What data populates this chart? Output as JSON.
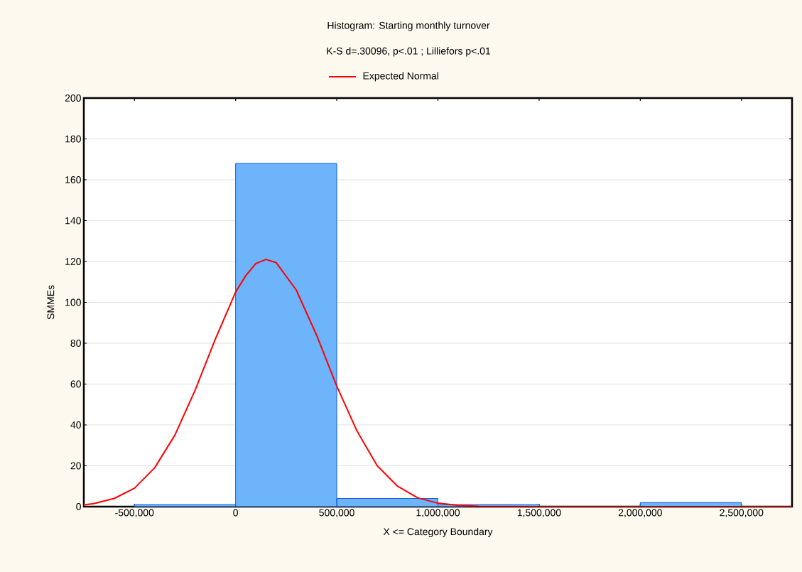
{
  "chart_data": {
    "type": "histogram",
    "title": "Histogram: Starting monthly turnover",
    "subtitle": "K-S d=.30096, p<.01 ; Lilliefors p<.01",
    "xlabel": "X <= Category Boundary",
    "ylabel": "SMMEs",
    "series": [
      {
        "color": "#6db4fb",
        "bins": [
          -500000,
          0,
          500000,
          1000000,
          1500000,
          2000000,
          2500000
        ],
        "values": [
          1,
          168,
          4,
          1,
          0,
          2
        ]
      },
      {
        "type": "line",
        "name": "Expected Normal",
        "color": "#ff0000",
        "x": [
          -750000,
          -700000,
          -600000,
          -500000,
          -400000,
          -300000,
          -200000,
          -100000,
          0,
          50000,
          100000,
          150000,
          200000,
          300000,
          400000,
          500000,
          600000,
          700000,
          800000,
          900000,
          1000000,
          1100000,
          1200000,
          1500000,
          2000000,
          2750000
        ],
        "values": [
          0.9,
          1.5,
          4,
          9,
          19,
          35,
          57,
          82,
          105,
          113,
          119,
          121,
          119.5,
          106,
          84,
          59,
          37,
          20,
          10,
          4.3,
          1.7,
          0.6,
          0.2,
          0,
          0,
          0
        ]
      }
    ],
    "xlim": [
      -750000,
      2750000
    ],
    "ylim": [
      0,
      200
    ],
    "xticks": [
      {
        "value": -500000,
        "label": "-500,000"
      },
      {
        "value": 0,
        "label": "0"
      },
      {
        "value": 500000,
        "label": "500,000"
      },
      {
        "value": 1000000,
        "label": "1,000,000"
      },
      {
        "value": 1500000,
        "label": "1,500,000"
      },
      {
        "value": 2000000,
        "label": "2,000,000"
      },
      {
        "value": 2500000,
        "label": "2,500,000"
      }
    ],
    "yticks": [
      0,
      20,
      40,
      60,
      80,
      100,
      120,
      140,
      160,
      180,
      200
    ],
    "grid": "y",
    "legend": "top",
    "marker": "none",
    "line_style": "solid"
  }
}
